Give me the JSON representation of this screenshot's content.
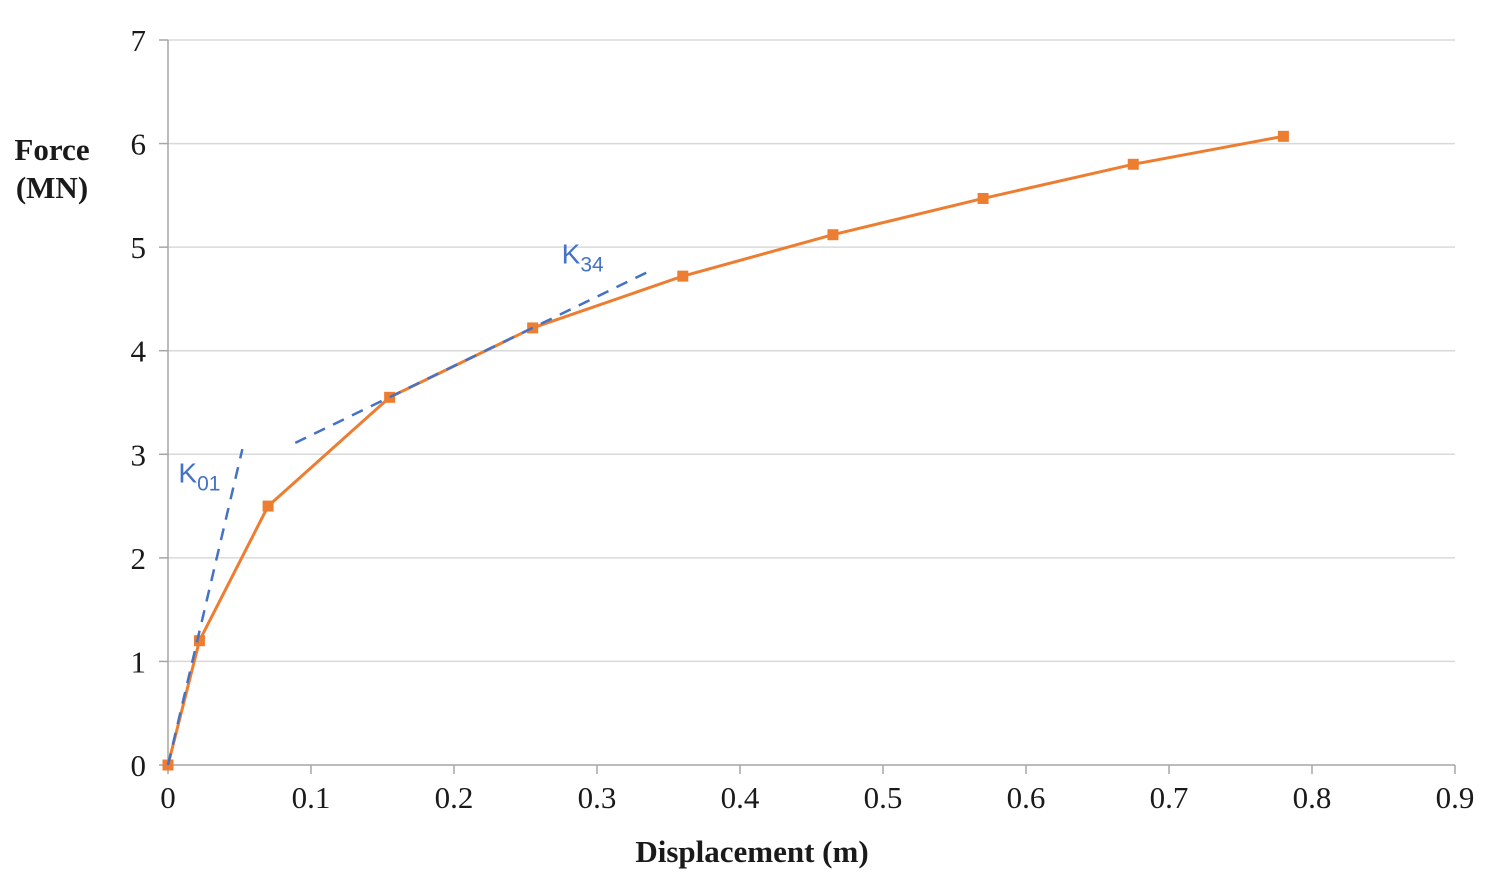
{
  "chart_data": {
    "type": "line",
    "title": "",
    "xlabel": "Displacement (m)",
    "ylabel": "Force (MN)",
    "ylabel_lines": [
      "Force",
      "(MN)"
    ],
    "xlim": [
      0,
      0.9
    ],
    "ylim": [
      0,
      7
    ],
    "x_ticks": [
      0,
      0.1,
      0.2,
      0.3,
      0.4,
      0.5,
      0.6,
      0.7,
      0.8,
      0.9
    ],
    "x_tick_labels": [
      "0",
      "0.1",
      "0.2",
      "0.3",
      "0.4",
      "0.5",
      "0.6",
      "0.7",
      "0.8",
      "0.9"
    ],
    "y_ticks": [
      0,
      1,
      2,
      3,
      4,
      5,
      6,
      7
    ],
    "y_tick_labels": [
      "0",
      "1",
      "2",
      "3",
      "4",
      "5",
      "6",
      "7"
    ],
    "grid": "horizontal",
    "legend": "none",
    "colors": {
      "grid": "#d9d9d9",
      "axis": "#a6a6a6",
      "curve": "#ed7d31",
      "stiffness_lines": "#4472c4"
    },
    "series": [
      {
        "name": "force-displacement-curve",
        "color": "#ed7d31",
        "style": "solid",
        "width": 3,
        "marker": "square",
        "x": [
          0,
          0.022,
          0.07,
          0.155,
          0.255,
          0.36,
          0.465,
          0.57,
          0.675,
          0.78
        ],
        "y": [
          0,
          1.2,
          2.5,
          3.55,
          4.22,
          4.72,
          5.12,
          5.47,
          5.8,
          6.07
        ]
      },
      {
        "name": "K01-stiffness-line",
        "color": "#4472c4",
        "style": "dashed",
        "width": 2.5,
        "marker": "none",
        "x": [
          0,
          0.052
        ],
        "y": [
          0,
          3.05
        ]
      },
      {
        "name": "K34-stiffness-line",
        "color": "#4472c4",
        "style": "dashed",
        "width": 2.5,
        "marker": "none",
        "x": [
          0.089,
          0.34
        ],
        "y": [
          3.11,
          4.79
        ]
      }
    ],
    "annotations": [
      {
        "name": "K01",
        "text_main": "K",
        "text_sub": "01",
        "x": 0.022,
        "y": 2.73,
        "color": "#4472c4"
      },
      {
        "name": "K34",
        "text_main": "K",
        "text_sub": "34",
        "x": 0.29,
        "y": 4.84,
        "color": "#4472c4"
      }
    ]
  }
}
